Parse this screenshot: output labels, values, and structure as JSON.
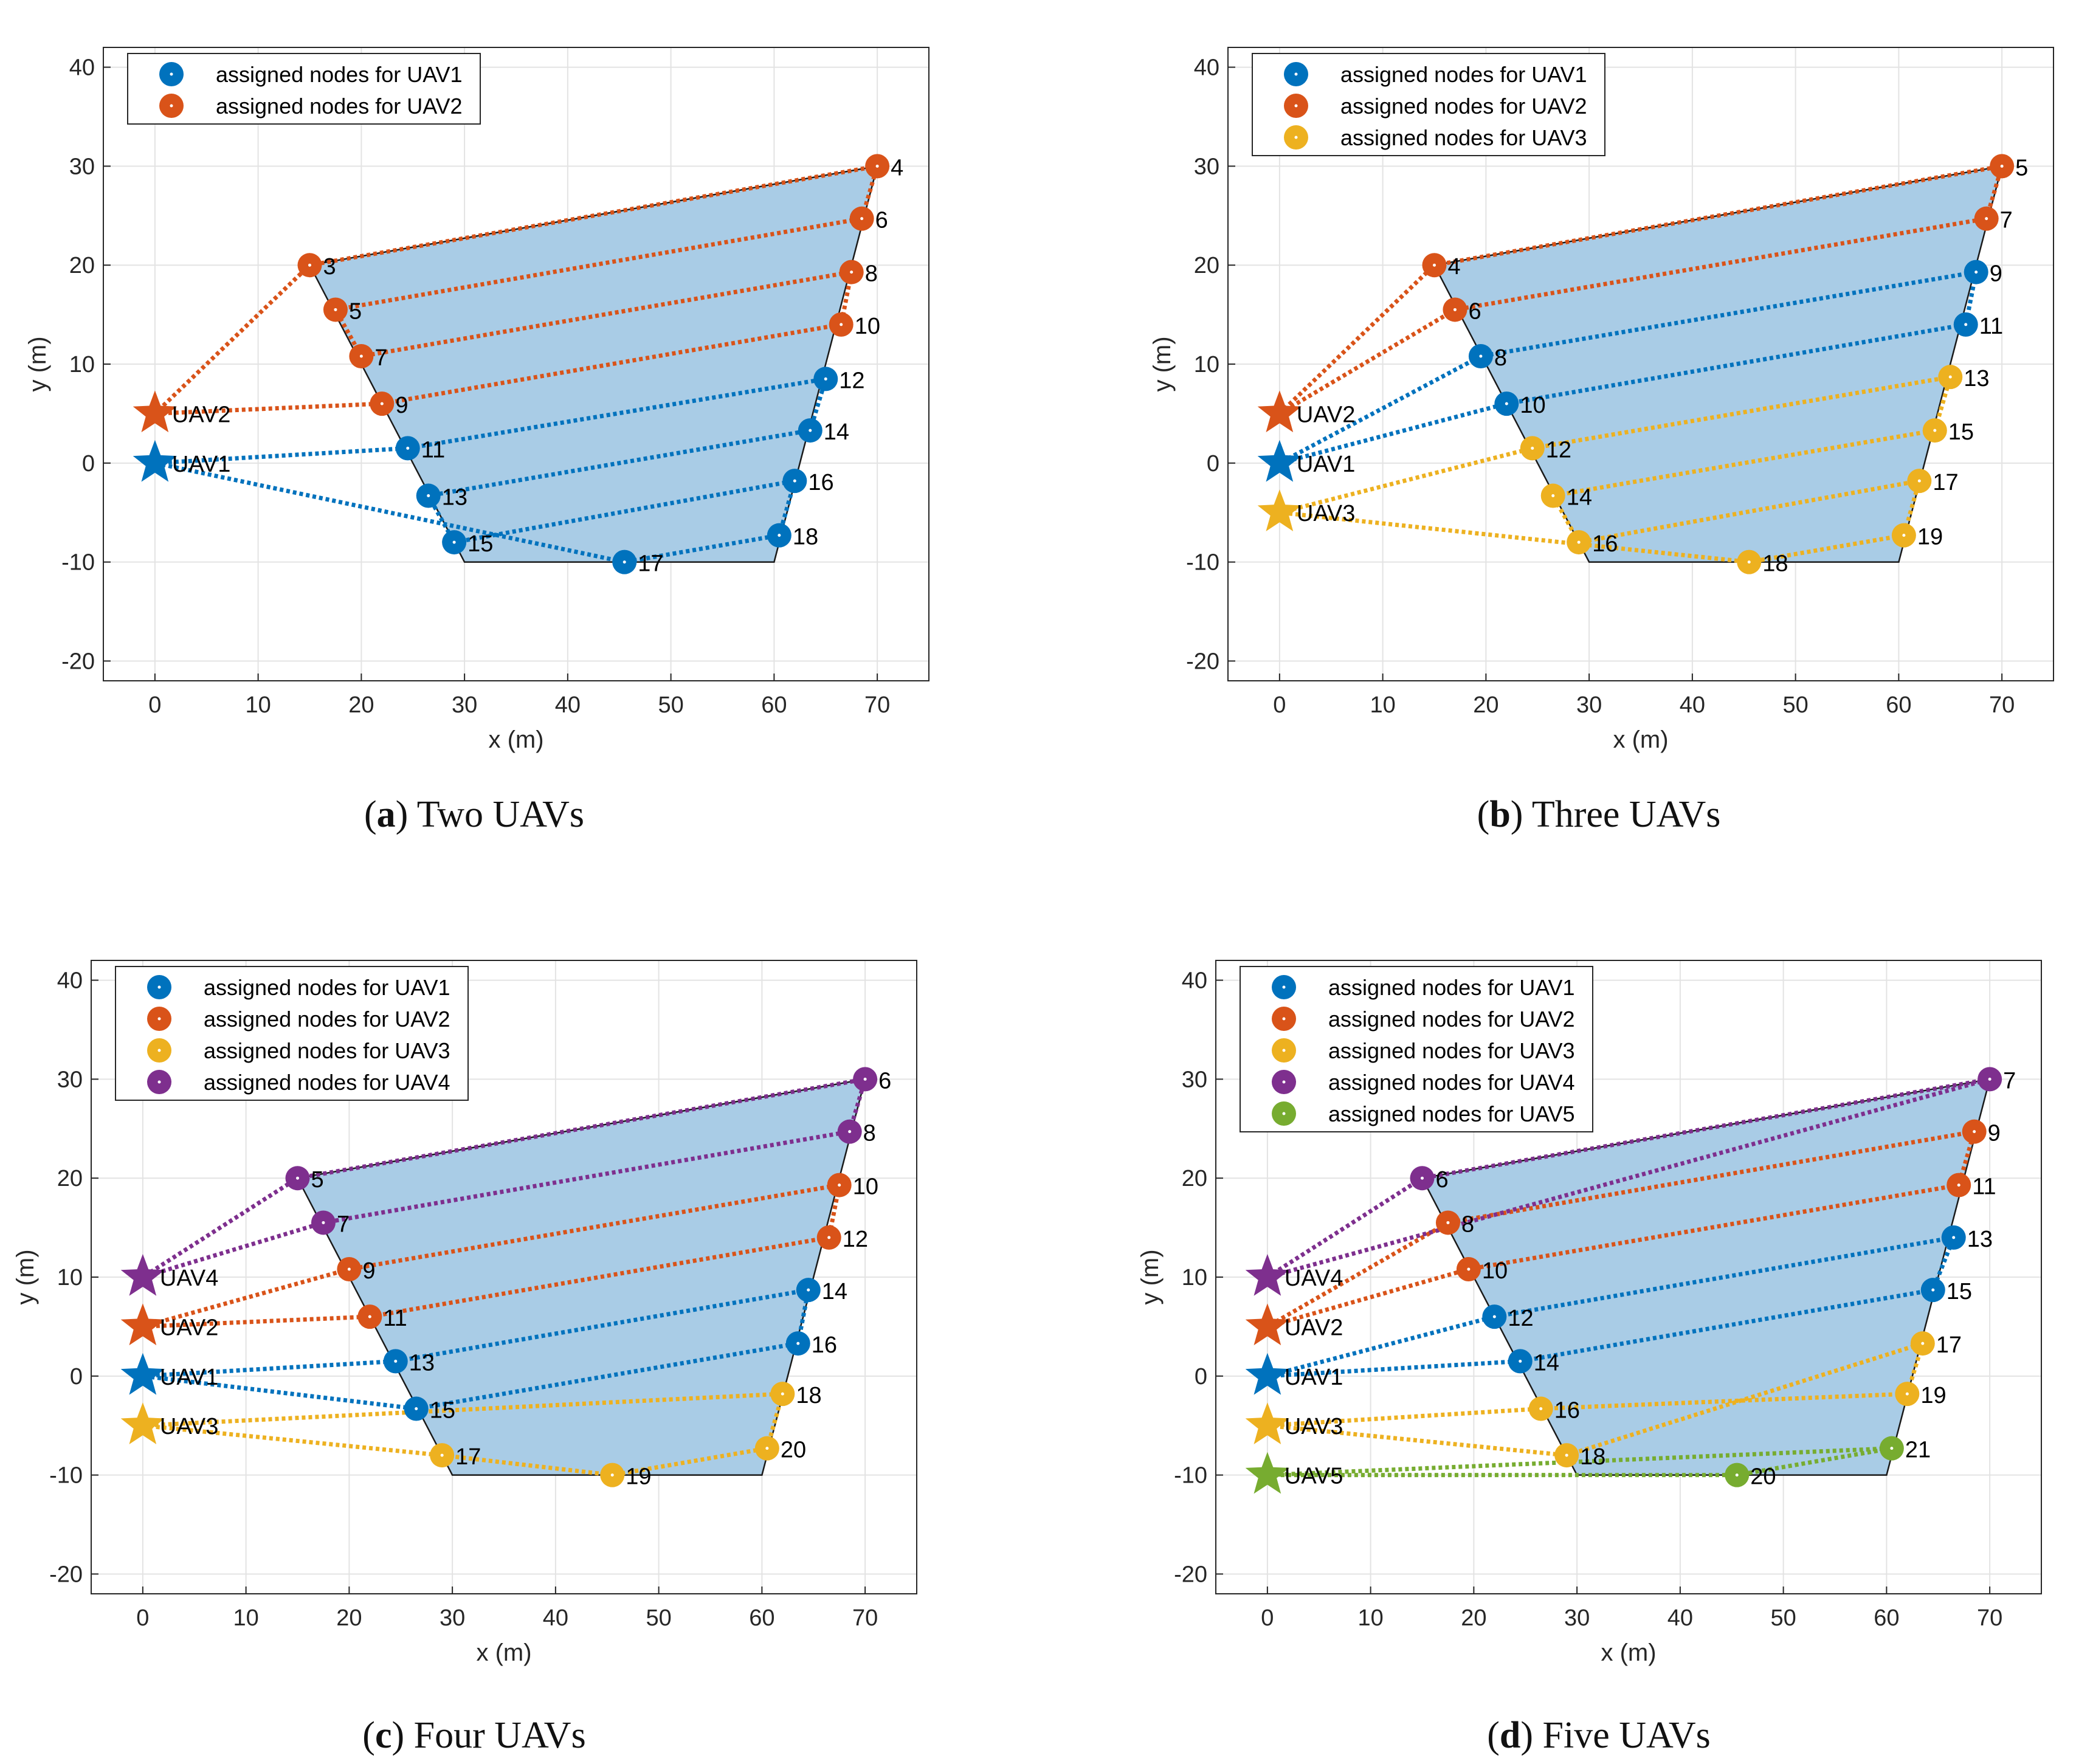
{
  "chart_data": [
    {
      "type": "scatter",
      "id": "a",
      "caption_letter": "a",
      "caption_text": "Two UAVs",
      "xlabel": "x (m)",
      "ylabel": "y (m)",
      "xlim": [
        -5,
        75
      ],
      "ylim": [
        -22,
        42
      ],
      "xticks": [
        0,
        10,
        20,
        30,
        40,
        50,
        60,
        70
      ],
      "yticks": [
        -20,
        -10,
        0,
        10,
        20,
        30,
        40
      ],
      "grid": true,
      "legend_position": "top-left",
      "region": [
        [
          15,
          20
        ],
        [
          70,
          30
        ],
        [
          60,
          -10
        ],
        [
          30,
          -10
        ]
      ],
      "uavs": [
        {
          "name": "UAV1",
          "x": 0,
          "y": 0,
          "color": "#0072BD"
        },
        {
          "name": "UAV2",
          "x": 0,
          "y": 5,
          "color": "#D95319"
        }
      ],
      "series": [
        {
          "name": "assigned nodes for UAV1",
          "color": "#0072BD",
          "points": [
            [
              24.5,
              1.5,
              "11"
            ],
            [
              65,
              8.5,
              "12"
            ],
            [
              63.5,
              3.3,
              "14"
            ],
            [
              26.5,
              -3.3,
              "13"
            ],
            [
              29,
              -8,
              "15"
            ],
            [
              62,
              -1.8,
              "16"
            ],
            [
              60.5,
              -7.3,
              "18"
            ],
            [
              45.5,
              -10,
              "17"
            ]
          ]
        },
        {
          "name": "assigned nodes for UAV2",
          "color": "#D95319",
          "points": [
            [
              22,
              6,
              "9"
            ],
            [
              66.5,
              14,
              "10"
            ],
            [
              67.5,
              19.3,
              "8"
            ],
            [
              20,
              10.8,
              "7"
            ],
            [
              17.5,
              15.5,
              "5"
            ],
            [
              68.5,
              24.7,
              "6"
            ],
            [
              70,
              30,
              "4"
            ],
            [
              15,
              20,
              "3"
            ]
          ]
        }
      ]
    },
    {
      "type": "scatter",
      "id": "b",
      "caption_letter": "b",
      "caption_text": "Three UAVs",
      "xlabel": "x (m)",
      "ylabel": "y (m)",
      "xlim": [
        -5,
        75
      ],
      "ylim": [
        -22,
        42
      ],
      "xticks": [
        0,
        10,
        20,
        30,
        40,
        50,
        60,
        70
      ],
      "yticks": [
        -20,
        -10,
        0,
        10,
        20,
        30,
        40
      ],
      "grid": true,
      "legend_position": "top-left",
      "region": [
        [
          15,
          20
        ],
        [
          70,
          30
        ],
        [
          60,
          -10
        ],
        [
          30,
          -10
        ]
      ],
      "uavs": [
        {
          "name": "UAV2",
          "x": 0,
          "y": 5,
          "color": "#D95319"
        },
        {
          "name": "UAV1",
          "x": 0,
          "y": 0,
          "color": "#0072BD"
        },
        {
          "name": "UAV3",
          "x": 0,
          "y": -5,
          "color": "#EDB120"
        }
      ],
      "series": [
        {
          "name": "assigned nodes for UAV1",
          "color": "#0072BD",
          "points": [
            [
              22,
              6,
              "10"
            ],
            [
              66.5,
              14,
              "11"
            ],
            [
              67.5,
              19.3,
              "9"
            ],
            [
              19.5,
              10.8,
              "8"
            ]
          ]
        },
        {
          "name": "assigned nodes for UAV2",
          "color": "#D95319",
          "points": [
            [
              17,
              15.5,
              "6"
            ],
            [
              68.5,
              24.7,
              "7"
            ],
            [
              70,
              30,
              "5"
            ],
            [
              15,
              20,
              "4"
            ]
          ]
        },
        {
          "name": "assigned nodes for UAV3",
          "color": "#EDB120",
          "points": [
            [
              24.5,
              1.5,
              "12"
            ],
            [
              65,
              8.7,
              "13"
            ],
            [
              63.5,
              3.3,
              "15"
            ],
            [
              26.5,
              -3.3,
              "14"
            ],
            [
              29,
              -8,
              "16"
            ],
            [
              62,
              -1.8,
              "17"
            ],
            [
              60.5,
              -7.3,
              "19"
            ],
            [
              45.5,
              -10,
              "18"
            ]
          ]
        }
      ]
    },
    {
      "type": "scatter",
      "id": "c",
      "caption_letter": "c",
      "caption_text": "Four UAVs",
      "xlabel": "x (m)",
      "ylabel": "y (m)",
      "xlim": [
        -5,
        75
      ],
      "ylim": [
        -22,
        42
      ],
      "xticks": [
        0,
        10,
        20,
        30,
        40,
        50,
        60,
        70
      ],
      "yticks": [
        -20,
        -10,
        0,
        10,
        20,
        30,
        40
      ],
      "grid": true,
      "legend_position": "top-left",
      "region": [
        [
          15,
          20
        ],
        [
          70,
          30
        ],
        [
          60,
          -10
        ],
        [
          30,
          -10
        ]
      ],
      "uavs": [
        {
          "name": "UAV4",
          "x": 0,
          "y": 10,
          "color": "#7E2F8E"
        },
        {
          "name": "UAV2",
          "x": 0,
          "y": 5,
          "color": "#D95319"
        },
        {
          "name": "UAV1",
          "x": 0,
          "y": 0,
          "color": "#0072BD"
        },
        {
          "name": "UAV3",
          "x": 0,
          "y": -5,
          "color": "#EDB120"
        }
      ],
      "series": [
        {
          "name": "assigned nodes for UAV1",
          "color": "#0072BD",
          "points": [
            [
              24.5,
              1.5,
              "13"
            ],
            [
              64.5,
              8.7,
              "14"
            ],
            [
              63.5,
              3.3,
              "16"
            ],
            [
              26.5,
              -3.3,
              "15"
            ]
          ]
        },
        {
          "name": "assigned nodes for UAV2",
          "color": "#D95319",
          "points": [
            [
              22,
              6,
              "11"
            ],
            [
              66.5,
              14,
              "12"
            ],
            [
              67.5,
              19.3,
              "10"
            ],
            [
              20,
              10.8,
              "9"
            ]
          ]
        },
        {
          "name": "assigned nodes for UAV3",
          "color": "#EDB120",
          "points": [
            [
              29,
              -8,
              "17"
            ],
            [
              45.5,
              -10,
              "19"
            ],
            [
              60.5,
              -7.3,
              "20"
            ],
            [
              62,
              -1.8,
              "18"
            ]
          ]
        },
        {
          "name": "assigned nodes for UAV4",
          "color": "#7E2F8E",
          "points": [
            [
              17.5,
              15.5,
              "7"
            ],
            [
              68.5,
              24.7,
              "8"
            ],
            [
              70,
              30,
              "6"
            ],
            [
              15,
              20,
              "5"
            ]
          ]
        }
      ]
    },
    {
      "type": "scatter",
      "id": "d",
      "caption_letter": "d",
      "caption_text": "Five UAVs",
      "xlabel": "x (m)",
      "ylabel": "y (m)",
      "xlim": [
        -5,
        75
      ],
      "ylim": [
        -22,
        42
      ],
      "xticks": [
        0,
        10,
        20,
        30,
        40,
        50,
        60,
        70
      ],
      "yticks": [
        -20,
        -10,
        0,
        10,
        20,
        30,
        40
      ],
      "grid": true,
      "legend_position": "top-left",
      "region": [
        [
          15,
          20
        ],
        [
          70,
          30
        ],
        [
          60,
          -10
        ],
        [
          30,
          -10
        ]
      ],
      "uavs": [
        {
          "name": "UAV4",
          "x": 0,
          "y": 10,
          "color": "#7E2F8E"
        },
        {
          "name": "UAV2",
          "x": 0,
          "y": 5,
          "color": "#D95319"
        },
        {
          "name": "UAV1",
          "x": 0,
          "y": 0,
          "color": "#0072BD"
        },
        {
          "name": "UAV3",
          "x": 0,
          "y": -5,
          "color": "#EDB120"
        },
        {
          "name": "UAV5",
          "x": 0,
          "y": -10,
          "color": "#77AC30"
        }
      ],
      "series": [
        {
          "name": "assigned nodes for UAV1",
          "color": "#0072BD",
          "points": [
            [
              24.5,
              1.5,
              "14"
            ],
            [
              64.5,
              8.7,
              "15"
            ],
            [
              66.5,
              14,
              "13"
            ],
            [
              22,
              6,
              "12"
            ]
          ]
        },
        {
          "name": "assigned nodes for UAV2",
          "color": "#D95319",
          "points": [
            [
              19.5,
              10.8,
              "10"
            ],
            [
              67,
              19.3,
              "11"
            ],
            [
              68.5,
              24.7,
              "9"
            ],
            [
              17.5,
              15.5,
              "8"
            ]
          ]
        },
        {
          "name": "assigned nodes for UAV3",
          "color": "#EDB120",
          "points": [
            [
              26.5,
              -3.3,
              "16"
            ],
            [
              62,
              -1.8,
              "19"
            ],
            [
              63.5,
              3.3,
              "17"
            ],
            [
              29,
              -8,
              "18"
            ]
          ]
        },
        {
          "name": "assigned nodes for UAV4",
          "color": "#7E2F8E",
          "points": [
            [
              15,
              20,
              "6"
            ],
            [
              70,
              30,
              "7"
            ]
          ]
        },
        {
          "name": "assigned nodes for UAV5",
          "color": "#77AC30",
          "points": [
            [
              45.5,
              -10,
              "20"
            ],
            [
              60.5,
              -7.3,
              "21"
            ]
          ]
        }
      ]
    }
  ]
}
